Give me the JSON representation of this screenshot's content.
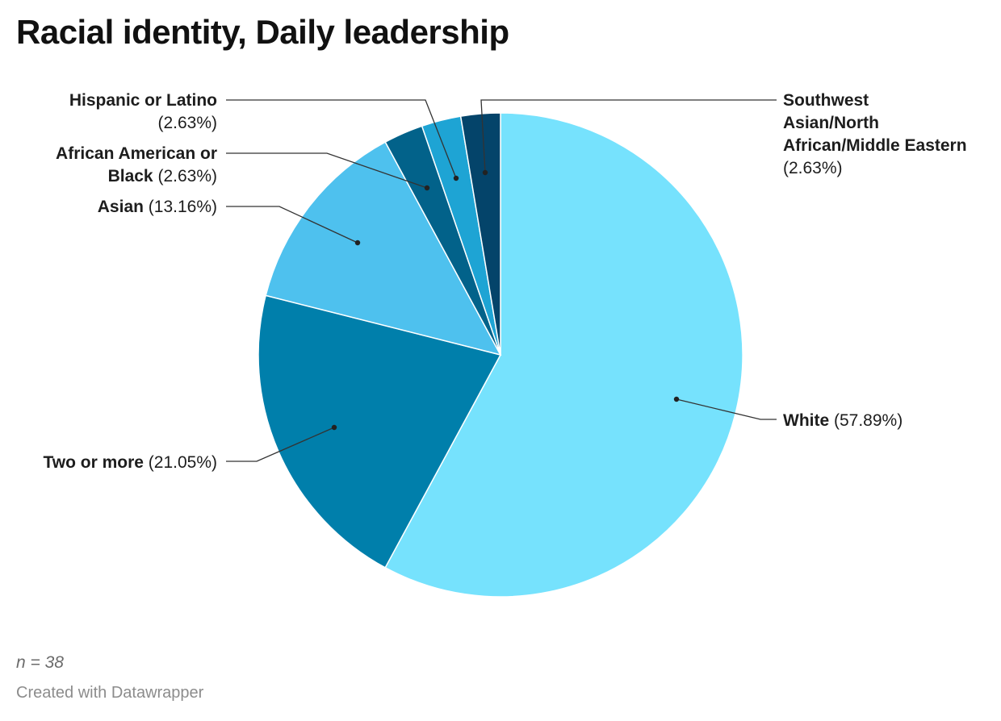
{
  "chart_data": {
    "type": "pie",
    "title": "Racial identity, Daily leadership",
    "slices": [
      {
        "label": "White",
        "pct_label": "(57.89%)",
        "value": 57.89,
        "color": "#76e2fd"
      },
      {
        "label": "Two or more",
        "pct_label": "(21.05%)",
        "value": 21.05,
        "color": "#007fab"
      },
      {
        "label": "Asian",
        "pct_label": "(13.16%)",
        "value": 13.16,
        "color": "#4ec1ee"
      },
      {
        "label": "African American or Black",
        "pct_label": "(2.63%)",
        "value": 2.63,
        "color": "#02628a"
      },
      {
        "label": "Hispanic or Latino",
        "pct_label": "(2.63%)",
        "value": 2.63,
        "color": "#1ea4d4"
      },
      {
        "label": "Southwest Asian/North African/Middle Eastern",
        "pct_label": "(2.63%)",
        "value": 2.63,
        "color": "#04446a"
      }
    ],
    "notes": "n = 38",
    "credit": "Created with Datawrapper"
  }
}
